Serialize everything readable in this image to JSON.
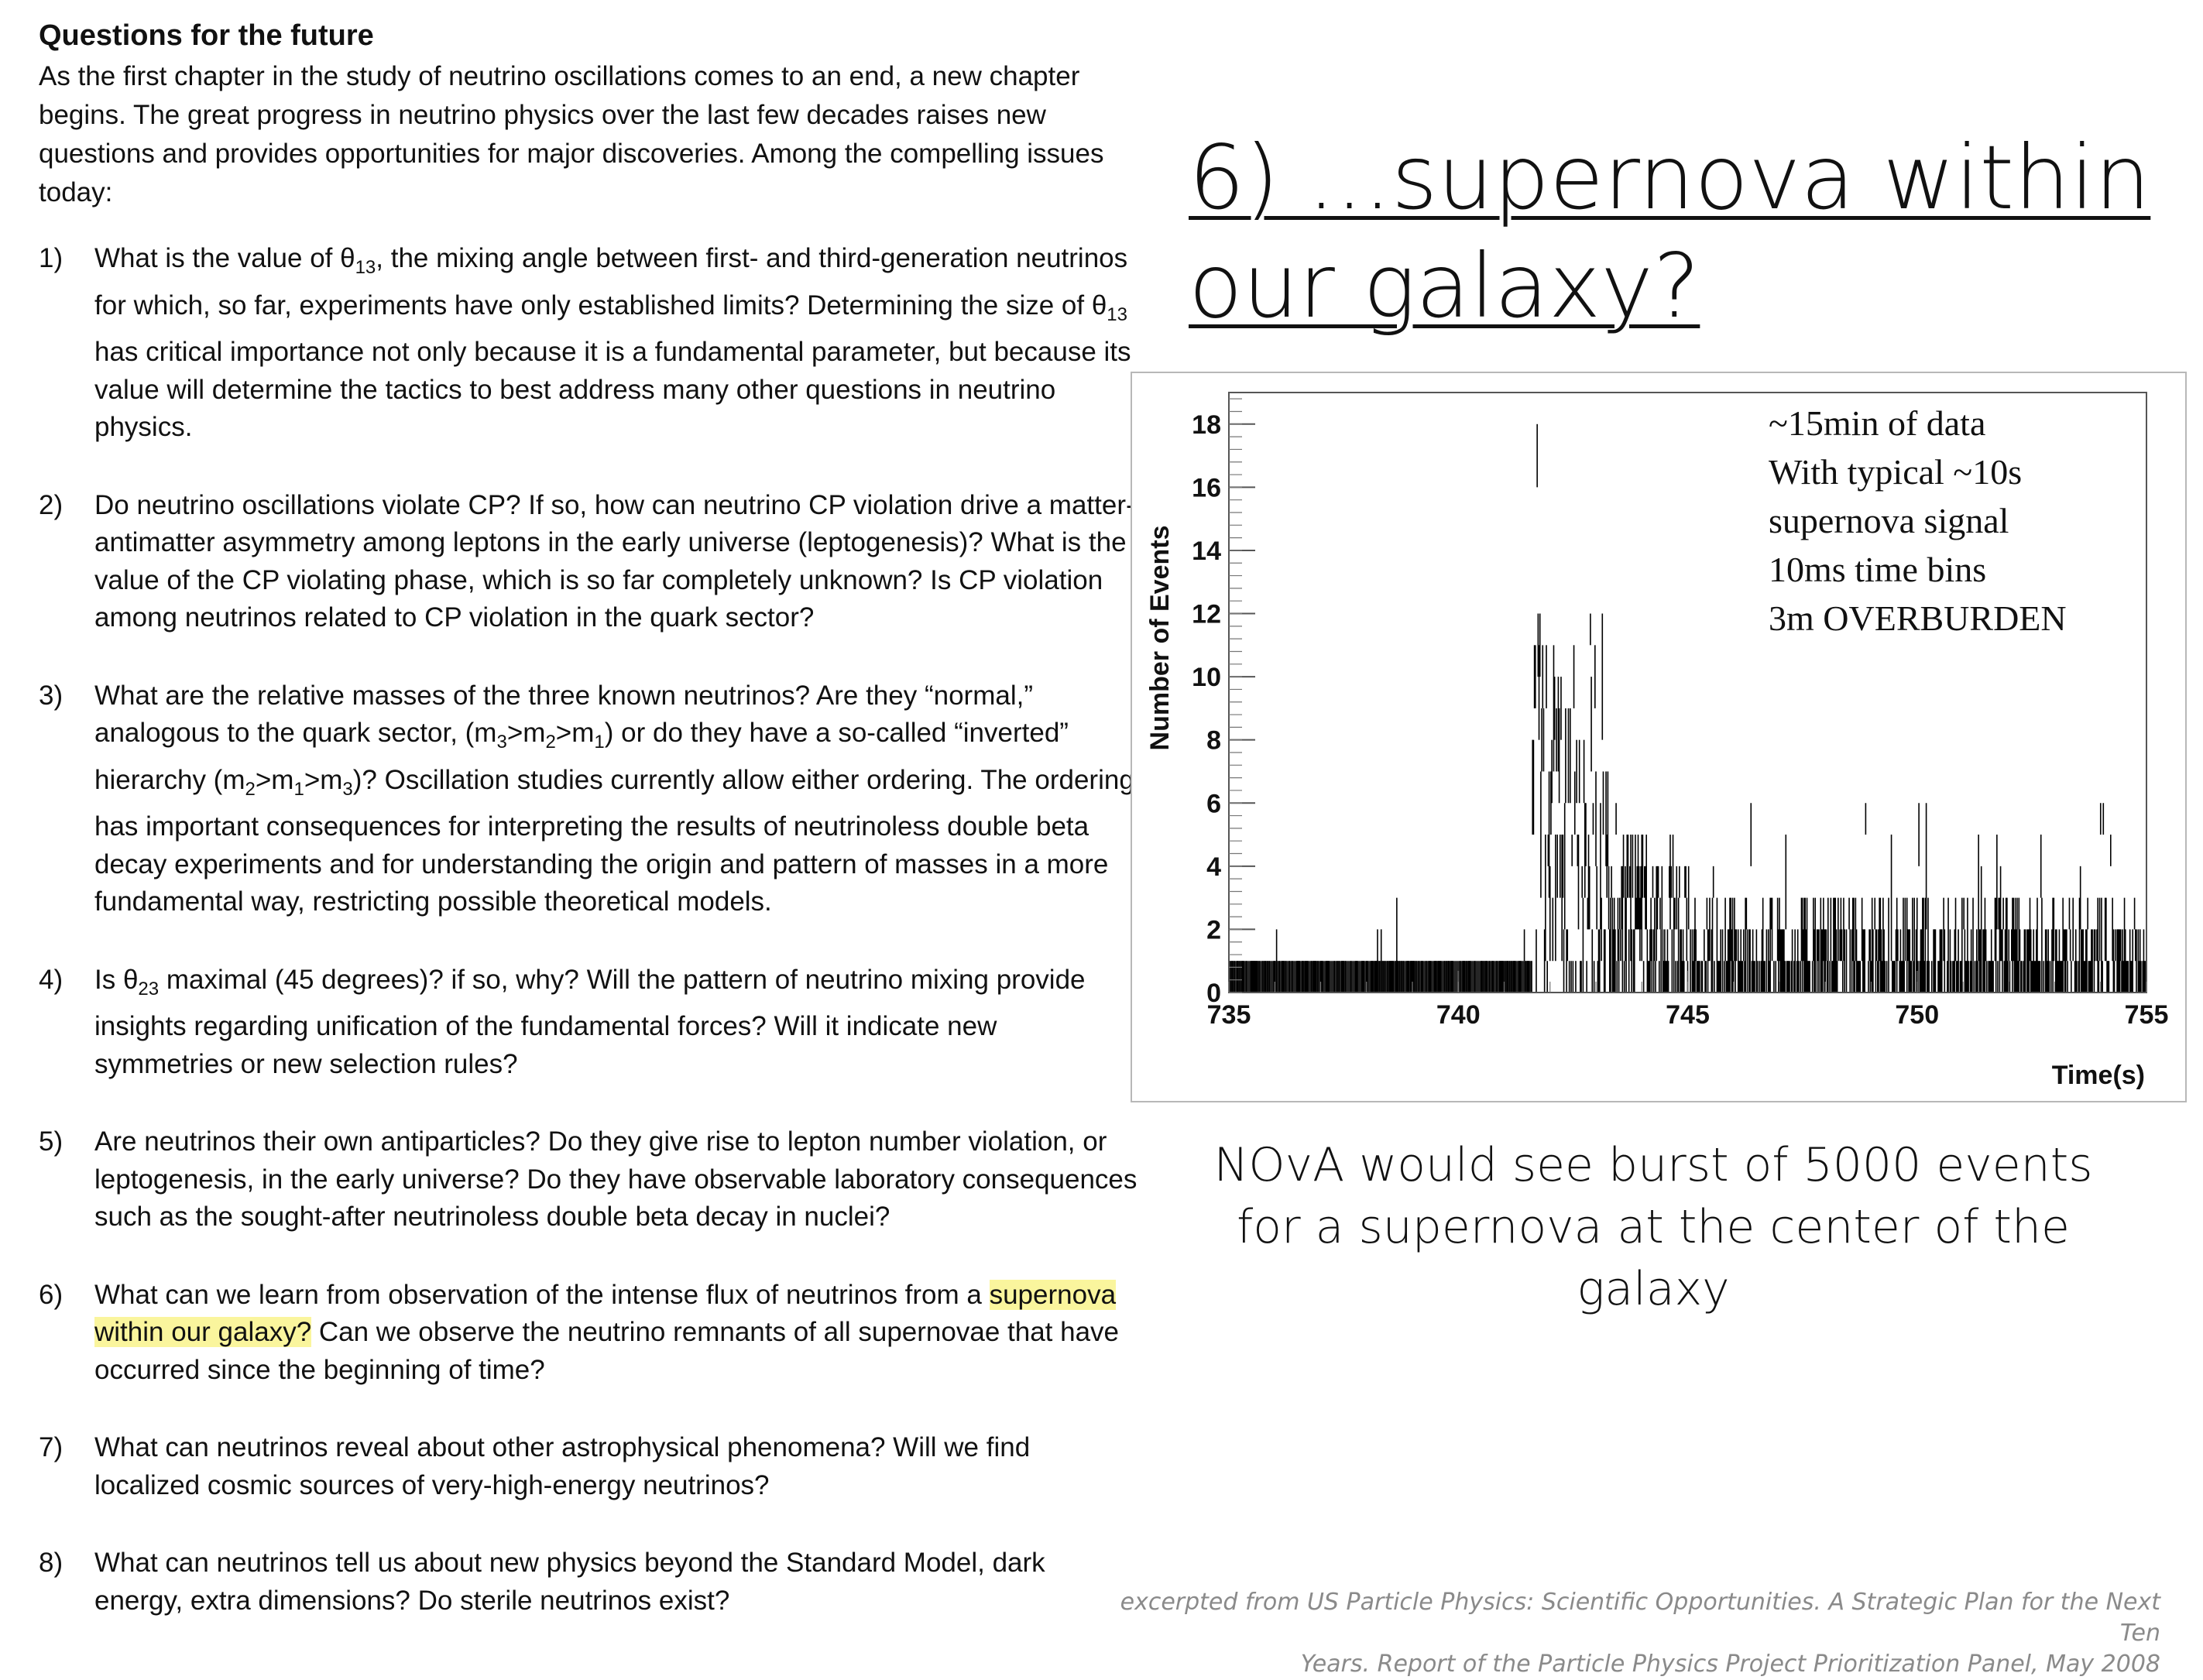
{
  "left": {
    "heading": "Questions for the future",
    "intro": "As the first chapter in the study of neutrino oscillations comes to an end, a new chapter begins. The great progress in neutrino physics over the last few decades raises new questions and provides opportunities for major discoveries. Among the compelling issues today:",
    "questions": [
      {
        "num": "1)",
        "pre": "What is the value of θ",
        "sub": "13",
        "post": ", the mixing angle between first- and third-generation neutrinos for which, so far, experiments have only established limits? Determining the size of θ",
        "sub2": "13",
        "post2": " has critical importance not only because it is a fundamental parameter, but because its value will determine the tactics to best address many other questions in neutrino physics."
      },
      {
        "num": "2)",
        "text": "Do neutrino oscillations violate CP? If so, how can neutrino CP violation drive a matter-antimatter asymmetry among leptons in the early universe (leptogenesis)? What is the value of the CP violating phase, which is so far completely unknown? Is CP violation among neutrinos related to CP violation in the quark sector?"
      },
      {
        "num": "3)",
        "a": "What are the relative masses of the three known neutrinos? Are they “normal,” analogous to the quark sector, (m",
        "s1": "3",
        "b": ">m",
        "s2": "2",
        "c": ">m",
        "s3": "1",
        "d": ") or do they have a so-called “inverted” hierarchy (m",
        "s4": "2",
        "e": ">m",
        "s5": "1",
        "f": ">m",
        "s6": "3",
        "g": ")? Oscillation studies currently allow either ordering. The ordering has important consequences for interpreting the results of neutrinoless double beta decay experiments and for understanding the origin and pattern of masses in a more fundamental way, restricting possible theoretical models."
      },
      {
        "num": "4)",
        "pre": "Is θ",
        "sub": "23",
        "post": " maximal (45 degrees)? if so, why? Will the pattern of neutrino mixing provide insights regarding unification of the fundamental forces? Will it indicate new symmetries or new selection rules?"
      },
      {
        "num": "5)",
        "text": "Are neutrinos their own antiparticles? Do they give rise to lepton number violation, or leptogenesis, in the early universe? Do they have observable laboratory consequences such as the sought-after neutrinoless double beta decay in nuclei?"
      },
      {
        "num": "6)",
        "pre": "What can we learn from observation of the intense flux of neutrinos from a ",
        "highlight": "supernova within our galaxy?",
        "post": " Can we observe the neutrino remnants of all supernovae that have occurred since the beginning of time?"
      },
      {
        "num": "7)",
        "text": "What can neutrinos reveal about other astrophysical phenomena? Will we find localized cosmic sources of very-high-energy neutrinos?"
      },
      {
        "num": "8)",
        "text": "What can neutrinos tell us about new physics beyond the Standard Model, dark energy, extra dimensions? Do sterile neutrinos exist?"
      }
    ]
  },
  "right": {
    "title_line1": "6) ...supernova within",
    "title_line2": "our galaxy?",
    "caption": "NOvA would see burst of 5000 events for a supernova at the center of the galaxy",
    "source_line1": "excerpted from US Particle Physics: Scientific Opportunities. A Strategic Plan for the Next Ten",
    "source_line2": "Years. Report of the Particle Physics Project Prioritization Panel, May 2008"
  },
  "chart_data": {
    "type": "bar",
    "title": "",
    "xlabel": "Time(s)",
    "ylabel": "Number of Events",
    "xlim": [
      735,
      755
    ],
    "ylim": [
      0,
      19
    ],
    "x_ticks": [
      735,
      740,
      745,
      750,
      755
    ],
    "y_ticks": [
      0,
      2,
      4,
      6,
      8,
      10,
      12,
      14,
      16,
      18
    ],
    "bin_width_s": 0.01,
    "onset_s": 741.6,
    "annotations": [
      "~15min of data",
      "With typical ~10s",
      "supernova signal",
      "10ms time bins",
      "3m OVERBURDEN"
    ],
    "colors": {
      "bars": "#000000",
      "frame": "#555555"
    },
    "grid": false,
    "series": [
      {
        "description_of_shape": "background counts 0-3 before onset; burst peaking near 18 at ~741.7 s decaying to ~1-3 by 755 s",
        "segments": [
          {
            "x_start": 735.0,
            "x_end": 741.6,
            "typical_min": 0,
            "typical_max": 1,
            "occasional_max": 3
          },
          {
            "x_start": 741.6,
            "x_end": 742.0,
            "typical_min": 3,
            "typical_max": 15,
            "peak": 18
          },
          {
            "x_start": 742.0,
            "x_end": 745.0,
            "typical_min": 2,
            "typical_max": 10,
            "occasional_max": 13
          },
          {
            "x_start": 745.0,
            "x_end": 755.0,
            "typical_min": 0,
            "typical_max": 3,
            "occasional_max": 6
          }
        ]
      }
    ]
  }
}
